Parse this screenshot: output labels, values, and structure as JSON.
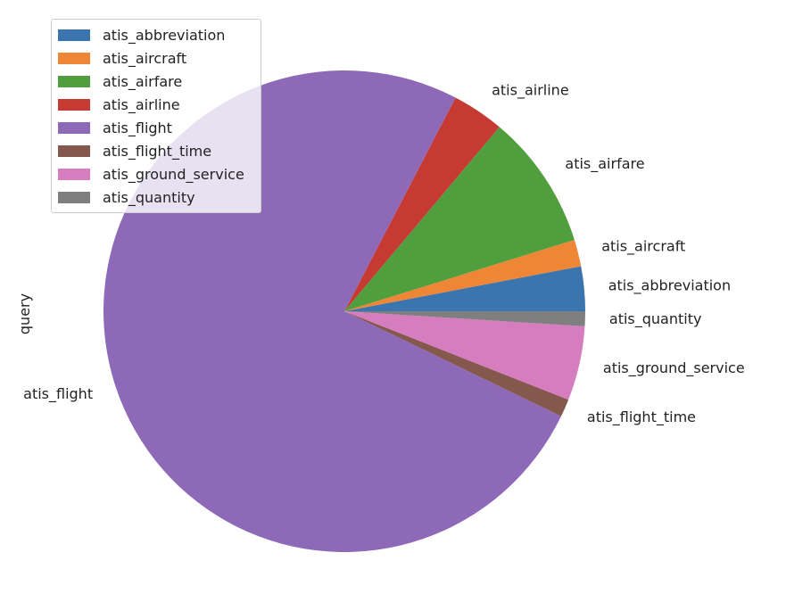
{
  "chart_data": {
    "type": "pie",
    "ylabel": "query",
    "labels": [
      "atis_abbreviation",
      "atis_aircraft",
      "atis_airfare",
      "atis_airline",
      "atis_flight",
      "atis_flight_time",
      "atis_ground_service",
      "atis_quantity"
    ],
    "values": [
      3.0,
      1.8,
      9.1,
      3.5,
      75.6,
      1.2,
      5.0,
      1.0
    ],
    "colors": [
      "#3b75af",
      "#ef8636",
      "#519e3e",
      "#c53a32",
      "#8d69b8",
      "#84584d",
      "#d57dbf",
      "#7f7f7f"
    ],
    "startangle": 0,
    "direction": "counterclockwise",
    "legend_position": "upper-left"
  }
}
